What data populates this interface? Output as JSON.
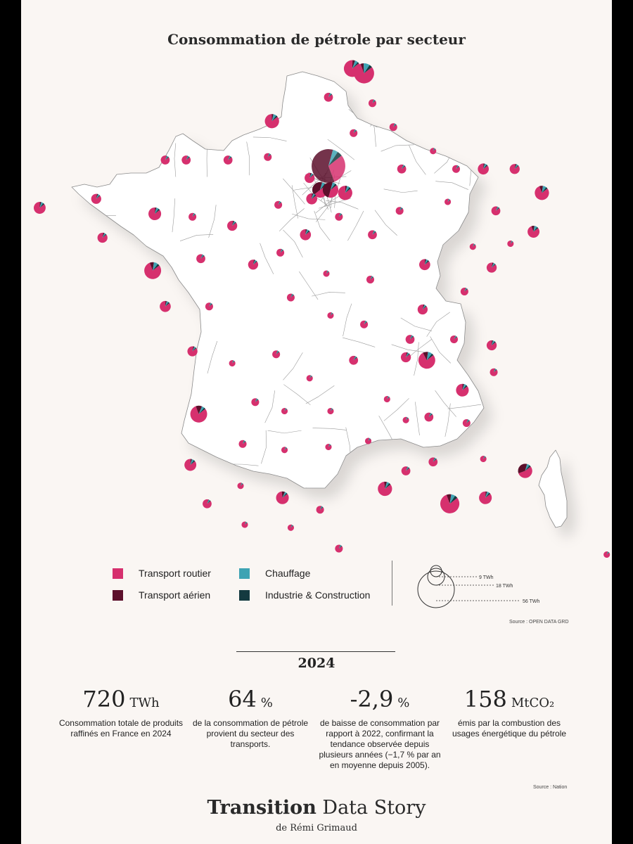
{
  "title": "Consommation de pétrole par secteur",
  "colors": {
    "transport_routier": "#d6306e",
    "transport_aerien": "#5c0f2b",
    "chauffage": "#3ea3b3",
    "industrie_construction": "#143a40",
    "map_fill": "#ffffff",
    "map_stroke": "#8a8a8a"
  },
  "legend": {
    "items": [
      {
        "key": "transport_routier",
        "label": "Transport routier"
      },
      {
        "key": "chauffage",
        "label": "Chauffage"
      },
      {
        "key": "transport_aerien",
        "label": "Transport aérien"
      },
      {
        "key": "industrie_construction",
        "label": "Industrie & Construction"
      }
    ],
    "sizes": [
      {
        "value": 9,
        "label": "9 TWh"
      },
      {
        "value": 18,
        "label": "18 TWh"
      },
      {
        "value": 56,
        "label": "56 TWh"
      }
    ]
  },
  "map_source": "Source : OPEN DATA GRD",
  "year": "2024",
  "stats": [
    {
      "value": "720",
      "unit": "TWh",
      "description": "Consommation totale de produits raffinés en France en 2024"
    },
    {
      "value": "64",
      "unit": "%",
      "description": "de la consommation de pétrole provient du secteur des transports."
    },
    {
      "value": "-2,9",
      "unit": "%",
      "description": "de baisse de consommation par rapport à 2022, confirmant la tendance observée depuis plusieurs années (−1,7 % par an en moyenne depuis 2005)."
    },
    {
      "value": "158",
      "unit": "MtCO₂",
      "description": "émis par la combustion des usages énergétique du pétrole"
    }
  ],
  "stats_source": "Source : Nation",
  "footer": {
    "brand_bold": "Transition",
    "brand_rest": "Data Story",
    "author": "de Rémi Grimaud"
  },
  "map_data": {
    "pies": [
      {
        "lon": 3.07,
        "lat": 50.63,
        "twh": 14,
        "shares": [
          0.86,
          0.05,
          0.06,
          0.03
        ]
      },
      {
        "lon": 3.35,
        "lat": 50.55,
        "twh": 20,
        "shares": [
          0.8,
          0.05,
          0.1,
          0.05
        ]
      },
      {
        "lon": 2.5,
        "lat": 50.15,
        "twh": 4,
        "shares": [
          0.9,
          0.02,
          0.05,
          0.03
        ]
      },
      {
        "lon": 3.55,
        "lat": 50.05,
        "twh": 3,
        "shares": [
          0.9,
          0.02,
          0.05,
          0.03
        ]
      },
      {
        "lon": 1.15,
        "lat": 49.75,
        "twh": 10,
        "shares": [
          0.85,
          0.04,
          0.07,
          0.04
        ]
      },
      {
        "lon": 3.1,
        "lat": 49.55,
        "twh": 3,
        "shares": [
          0.9,
          0.02,
          0.05,
          0.03
        ]
      },
      {
        "lon": 4.05,
        "lat": 49.65,
        "twh": 3,
        "shares": [
          0.9,
          0.02,
          0.05,
          0.03
        ]
      },
      {
        "lon": 2.5,
        "lat": 49.0,
        "twh": 56,
        "shares": [
          0.3,
          0.6,
          0.05,
          0.05
        ]
      },
      {
        "lon": 2.3,
        "lat": 48.6,
        "twh": 12,
        "shares": [
          0.5,
          0.4,
          0.06,
          0.04
        ]
      },
      {
        "lon": 2.55,
        "lat": 48.6,
        "twh": 12,
        "shares": [
          0.4,
          0.5,
          0.06,
          0.04
        ]
      },
      {
        "lon": 2.9,
        "lat": 48.55,
        "twh": 10,
        "shares": [
          0.86,
          0.04,
          0.06,
          0.04
        ]
      },
      {
        "lon": 2.05,
        "lat": 48.8,
        "twh": 5,
        "shares": [
          0.88,
          0.04,
          0.05,
          0.03
        ]
      },
      {
        "lon": 2.1,
        "lat": 48.45,
        "twh": 6,
        "shares": [
          0.86,
          0.04,
          0.06,
          0.04
        ]
      },
      {
        "lon": -0.9,
        "lat": 49.1,
        "twh": 4,
        "shares": [
          0.9,
          0.02,
          0.05,
          0.03
        ]
      },
      {
        "lon": 0.1,
        "lat": 49.1,
        "twh": 4,
        "shares": [
          0.9,
          0.02,
          0.05,
          0.03
        ]
      },
      {
        "lon": -1.4,
        "lat": 49.1,
        "twh": 4,
        "shares": [
          0.9,
          0.02,
          0.05,
          0.03
        ]
      },
      {
        "lon": 1.05,
        "lat": 49.15,
        "twh": 3,
        "shares": [
          0.9,
          0.02,
          0.05,
          0.03
        ]
      },
      {
        "lon": 4.25,
        "lat": 48.95,
        "twh": 4,
        "shares": [
          0.9,
          0.02,
          0.05,
          0.03
        ]
      },
      {
        "lon": 5.0,
        "lat": 49.25,
        "twh": 2,
        "shares": [
          0.9,
          0.02,
          0.05,
          0.03
        ]
      },
      {
        "lon": 5.55,
        "lat": 48.95,
        "twh": 3,
        "shares": [
          0.9,
          0.02,
          0.05,
          0.03
        ]
      },
      {
        "lon": 6.2,
        "lat": 48.95,
        "twh": 6,
        "shares": [
          0.86,
          0.04,
          0.06,
          0.04
        ]
      },
      {
        "lon": 6.95,
        "lat": 48.95,
        "twh": 5,
        "shares": [
          0.88,
          0.04,
          0.05,
          0.03
        ]
      },
      {
        "lon": 7.6,
        "lat": 48.55,
        "twh": 10,
        "shares": [
          0.8,
          0.08,
          0.08,
          0.04
        ]
      },
      {
        "lon": 7.4,
        "lat": 47.9,
        "twh": 7,
        "shares": [
          0.8,
          0.08,
          0.08,
          0.04
        ]
      },
      {
        "lon": 6.5,
        "lat": 48.25,
        "twh": 4,
        "shares": [
          0.9,
          0.02,
          0.05,
          0.03
        ]
      },
      {
        "lon": 5.35,
        "lat": 48.4,
        "twh": 2,
        "shares": [
          0.9,
          0.02,
          0.05,
          0.03
        ]
      },
      {
        "lon": 4.2,
        "lat": 48.25,
        "twh": 3,
        "shares": [
          0.9,
          0.02,
          0.05,
          0.03
        ]
      },
      {
        "lon": 3.55,
        "lat": 47.85,
        "twh": 4,
        "shares": [
          0.9,
          0.02,
          0.05,
          0.03
        ]
      },
      {
        "lon": 2.75,
        "lat": 48.15,
        "twh": 3,
        "shares": [
          0.9,
          0.02,
          0.05,
          0.03
        ]
      },
      {
        "lon": 5.95,
        "lat": 47.65,
        "twh": 2,
        "shares": [
          0.9,
          0.02,
          0.05,
          0.03
        ]
      },
      {
        "lon": 6.4,
        "lat": 47.3,
        "twh": 5,
        "shares": [
          0.88,
          0.04,
          0.05,
          0.03
        ]
      },
      {
        "lon": 6.85,
        "lat": 47.7,
        "twh": 2,
        "shares": [
          0.9,
          0.02,
          0.05,
          0.03
        ]
      },
      {
        "lon": 4.8,
        "lat": 47.35,
        "twh": 6,
        "shares": [
          0.86,
          0.04,
          0.06,
          0.04
        ]
      },
      {
        "lon": 5.75,
        "lat": 46.9,
        "twh": 3,
        "shares": [
          0.9,
          0.02,
          0.05,
          0.03
        ]
      },
      {
        "lon": 4.75,
        "lat": 46.6,
        "twh": 5,
        "shares": [
          0.88,
          0.04,
          0.05,
          0.03
        ]
      },
      {
        "lon": 3.5,
        "lat": 47.1,
        "twh": 3,
        "shares": [
          0.9,
          0.02,
          0.05,
          0.03
        ]
      },
      {
        "lon": -4.4,
        "lat": 48.3,
        "twh": 7,
        "shares": [
          0.86,
          0.04,
          0.06,
          0.04
        ]
      },
      {
        "lon": -3.05,
        "lat": 48.45,
        "twh": 5,
        "shares": [
          0.88,
          0.04,
          0.05,
          0.03
        ]
      },
      {
        "lon": -1.65,
        "lat": 48.2,
        "twh": 8,
        "shares": [
          0.86,
          0.04,
          0.06,
          0.04
        ]
      },
      {
        "lon": -2.9,
        "lat": 47.8,
        "twh": 5,
        "shares": [
          0.88,
          0.04,
          0.05,
          0.03
        ]
      },
      {
        "lon": -0.75,
        "lat": 48.15,
        "twh": 3,
        "shares": [
          0.9,
          0.02,
          0.05,
          0.03
        ]
      },
      {
        "lon": 0.2,
        "lat": 48.0,
        "twh": 5,
        "shares": [
          0.88,
          0.04,
          0.05,
          0.03
        ]
      },
      {
        "lon": 1.3,
        "lat": 48.35,
        "twh": 3,
        "shares": [
          0.9,
          0.02,
          0.05,
          0.03
        ]
      },
      {
        "lon": -1.7,
        "lat": 47.25,
        "twh": 14,
        "shares": [
          0.8,
          0.08,
          0.08,
          0.04
        ]
      },
      {
        "lon": -0.55,
        "lat": 47.45,
        "twh": 4,
        "shares": [
          0.9,
          0.02,
          0.05,
          0.03
        ]
      },
      {
        "lon": 1.35,
        "lat": 47.55,
        "twh": 3,
        "shares": [
          0.9,
          0.02,
          0.05,
          0.03
        ]
      },
      {
        "lon": 0.7,
        "lat": 47.35,
        "twh": 5,
        "shares": [
          0.88,
          0.04,
          0.05,
          0.03
        ]
      },
      {
        "lon": 1.95,
        "lat": 47.85,
        "twh": 6,
        "shares": [
          0.86,
          0.04,
          0.06,
          0.04
        ]
      },
      {
        "lon": 2.45,
        "lat": 47.2,
        "twh": 2,
        "shares": [
          0.9,
          0.02,
          0.05,
          0.03
        ]
      },
      {
        "lon": -1.4,
        "lat": 46.65,
        "twh": 6,
        "shares": [
          0.86,
          0.04,
          0.06,
          0.04
        ]
      },
      {
        "lon": -0.35,
        "lat": 46.65,
        "twh": 3,
        "shares": [
          0.9,
          0.02,
          0.05,
          0.03
        ]
      },
      {
        "lon": 1.6,
        "lat": 46.8,
        "twh": 3,
        "shares": [
          0.9,
          0.02,
          0.05,
          0.03
        ]
      },
      {
        "lon": 2.55,
        "lat": 46.5,
        "twh": 2,
        "shares": [
          0.9,
          0.02,
          0.05,
          0.03
        ]
      },
      {
        "lon": 3.35,
        "lat": 46.35,
        "twh": 3,
        "shares": [
          0.9,
          0.02,
          0.05,
          0.03
        ]
      },
      {
        "lon": 4.45,
        "lat": 46.1,
        "twh": 4,
        "shares": [
          0.9,
          0.02,
          0.05,
          0.03
        ]
      },
      {
        "lon": 4.85,
        "lat": 45.75,
        "twh": 14,
        "shares": [
          0.78,
          0.1,
          0.08,
          0.04
        ]
      },
      {
        "lon": 5.5,
        "lat": 46.1,
        "twh": 3,
        "shares": [
          0.9,
          0.02,
          0.05,
          0.03
        ]
      },
      {
        "lon": 6.4,
        "lat": 46.0,
        "twh": 5,
        "shares": [
          0.86,
          0.04,
          0.06,
          0.04
        ]
      },
      {
        "lon": 6.45,
        "lat": 45.55,
        "twh": 3,
        "shares": [
          0.9,
          0.02,
          0.05,
          0.03
        ]
      },
      {
        "lon": 5.7,
        "lat": 45.25,
        "twh": 8,
        "shares": [
          0.86,
          0.04,
          0.06,
          0.04
        ]
      },
      {
        "lon": 4.35,
        "lat": 45.8,
        "twh": 5,
        "shares": [
          0.88,
          0.04,
          0.05,
          0.03
        ]
      },
      {
        "lon": -0.75,
        "lat": 45.9,
        "twh": 5,
        "shares": [
          0.88,
          0.04,
          0.05,
          0.03
        ]
      },
      {
        "lon": 0.2,
        "lat": 45.7,
        "twh": 2,
        "shares": [
          0.9,
          0.02,
          0.05,
          0.03
        ]
      },
      {
        "lon": 1.25,
        "lat": 45.85,
        "twh": 3,
        "shares": [
          0.9,
          0.02,
          0.05,
          0.03
        ]
      },
      {
        "lon": 2.05,
        "lat": 45.45,
        "twh": 2,
        "shares": [
          0.9,
          0.02,
          0.05,
          0.03
        ]
      },
      {
        "lon": 3.1,
        "lat": 45.75,
        "twh": 4,
        "shares": [
          0.9,
          0.02,
          0.05,
          0.03
        ]
      },
      {
        "lon": 3.9,
        "lat": 45.1,
        "twh": 2,
        "shares": [
          0.9,
          0.02,
          0.05,
          0.03
        ]
      },
      {
        "lon": 0.75,
        "lat": 45.05,
        "twh": 3,
        "shares": [
          0.9,
          0.02,
          0.05,
          0.03
        ]
      },
      {
        "lon": -0.6,
        "lat": 44.85,
        "twh": 14,
        "shares": [
          0.8,
          0.12,
          0.05,
          0.03
        ]
      },
      {
        "lon": 1.45,
        "lat": 44.9,
        "twh": 2,
        "shares": [
          0.9,
          0.02,
          0.05,
          0.03
        ]
      },
      {
        "lon": 2.55,
        "lat": 44.9,
        "twh": 2,
        "shares": [
          0.9,
          0.02,
          0.05,
          0.03
        ]
      },
      {
        "lon": 4.35,
        "lat": 44.75,
        "twh": 2,
        "shares": [
          0.9,
          0.02,
          0.05,
          0.03
        ]
      },
      {
        "lon": 4.9,
        "lat": 44.8,
        "twh": 4,
        "shares": [
          0.9,
          0.02,
          0.05,
          0.03
        ]
      },
      {
        "lon": 5.8,
        "lat": 44.7,
        "twh": 3,
        "shares": [
          0.9,
          0.02,
          0.05,
          0.03
        ]
      },
      {
        "lon": -0.8,
        "lat": 44.0,
        "twh": 7,
        "shares": [
          0.86,
          0.04,
          0.06,
          0.04
        ]
      },
      {
        "lon": 0.45,
        "lat": 44.35,
        "twh": 3,
        "shares": [
          0.9,
          0.02,
          0.05,
          0.03
        ]
      },
      {
        "lon": 1.45,
        "lat": 44.25,
        "twh": 2,
        "shares": [
          0.9,
          0.02,
          0.05,
          0.03
        ]
      },
      {
        "lon": 2.5,
        "lat": 44.3,
        "twh": 2,
        "shares": [
          0.9,
          0.02,
          0.05,
          0.03
        ]
      },
      {
        "lon": 3.45,
        "lat": 44.4,
        "twh": 2,
        "shares": [
          0.9,
          0.02,
          0.05,
          0.03
        ]
      },
      {
        "lon": 4.35,
        "lat": 43.9,
        "twh": 4,
        "shares": [
          0.9,
          0.02,
          0.05,
          0.03
        ]
      },
      {
        "lon": 5.0,
        "lat": 44.05,
        "twh": 4,
        "shares": [
          0.9,
          0.02,
          0.05,
          0.03
        ]
      },
      {
        "lon": 6.2,
        "lat": 44.1,
        "twh": 2,
        "shares": [
          0.9,
          0.02,
          0.05,
          0.03
        ]
      },
      {
        "lon": 7.2,
        "lat": 43.9,
        "twh": 10,
        "shares": [
          0.55,
          0.35,
          0.06,
          0.04
        ]
      },
      {
        "lon": 3.85,
        "lat": 43.6,
        "twh": 10,
        "shares": [
          0.84,
          0.06,
          0.06,
          0.04
        ]
      },
      {
        "lon": 5.4,
        "lat": 43.35,
        "twh": 18,
        "shares": [
          0.8,
          0.08,
          0.07,
          0.05
        ]
      },
      {
        "lon": 6.25,
        "lat": 43.45,
        "twh": 8,
        "shares": [
          0.86,
          0.04,
          0.06,
          0.04
        ]
      },
      {
        "lon": 1.4,
        "lat": 43.45,
        "twh": 8,
        "shares": [
          0.84,
          0.08,
          0.05,
          0.03
        ]
      },
      {
        "lon": -0.4,
        "lat": 43.35,
        "twh": 4,
        "shares": [
          0.9,
          0.02,
          0.05,
          0.03
        ]
      },
      {
        "lon": 0.4,
        "lat": 43.65,
        "twh": 2,
        "shares": [
          0.9,
          0.02,
          0.05,
          0.03
        ]
      },
      {
        "lon": 0.5,
        "lat": 43.0,
        "twh": 2,
        "shares": [
          0.9,
          0.02,
          0.05,
          0.03
        ]
      },
      {
        "lon": 2.3,
        "lat": 43.25,
        "twh": 3,
        "shares": [
          0.9,
          0.02,
          0.05,
          0.03
        ]
      },
      {
        "lon": 2.75,
        "lat": 42.6,
        "twh": 3,
        "shares": [
          0.9,
          0.02,
          0.05,
          0.03
        ]
      },
      {
        "lon": 1.6,
        "lat": 42.95,
        "twh": 2,
        "shares": [
          0.9,
          0.02,
          0.05,
          0.03
        ]
      },
      {
        "lon": 9.15,
        "lat": 42.5,
        "twh": 2,
        "shares": [
          0.9,
          0.02,
          0.05,
          0.03
        ]
      },
      {
        "lon": 8.9,
        "lat": 41.95,
        "twh": 2,
        "shares": [
          0.9,
          0.02,
          0.05,
          0.03
        ]
      }
    ]
  }
}
